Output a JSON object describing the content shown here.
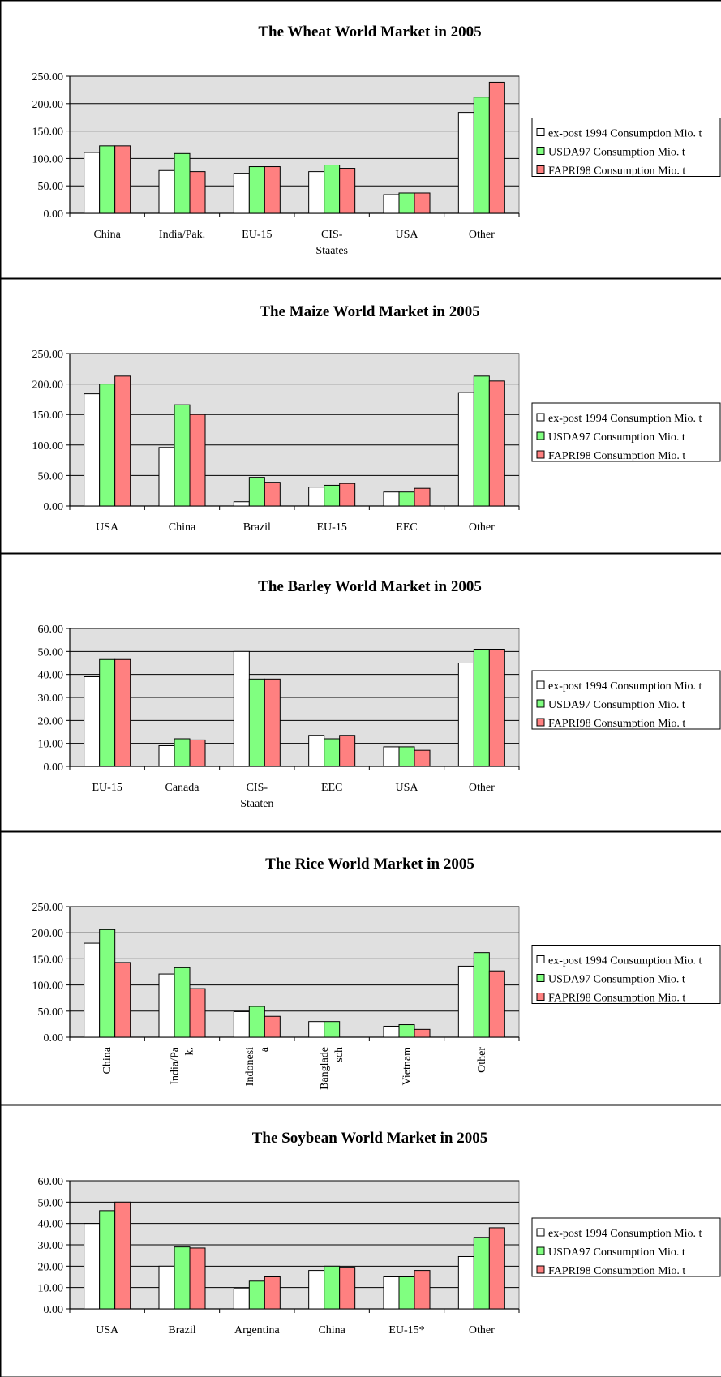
{
  "colors": {
    "plot_bg": "#e0e0e0",
    "series": [
      "#ffffff",
      "#80ff80",
      "#ff8080"
    ],
    "frame": "#000000"
  },
  "chart_data": [
    {
      "type": "bar",
      "title": "The Wheat World Market in 2005",
      "categories": [
        "China",
        "India/Pak.",
        "EU-15",
        "CIS-\nStaates",
        "USA",
        "Other"
      ],
      "ylim": [
        0,
        250
      ],
      "yticks": [
        "0.00",
        "50.00",
        "100.00",
        "150.00",
        "200.00",
        "250.00"
      ],
      "grid": true,
      "legend_position": "right",
      "label_rotation": 0,
      "series": [
        {
          "name": "ex-post 1994 Consumption Mio. t",
          "values": [
            111,
            78,
            73,
            76,
            34,
            184
          ]
        },
        {
          "name": "USDA97 Consumption Mio. t",
          "values": [
            123,
            109,
            85,
            88,
            37,
            212
          ]
        },
        {
          "name": "FAPRI98 Consumption Mio. t",
          "values": [
            123,
            76,
            85,
            82,
            37,
            239
          ]
        }
      ]
    },
    {
      "type": "bar",
      "title": "The Maize World Market in 2005",
      "categories": [
        "USA",
        "China",
        "Brazil",
        "EU-15",
        "EEC",
        "Other"
      ],
      "ylim": [
        0,
        250
      ],
      "yticks": [
        "0.00",
        "50.00",
        "100.00",
        "150.00",
        "200.00",
        "250.00"
      ],
      "grid": true,
      "legend_position": "right",
      "label_rotation": 0,
      "series": [
        {
          "name": "ex-post 1994 Consumption Mio. t",
          "values": [
            184,
            96,
            7,
            31,
            23,
            186
          ]
        },
        {
          "name": "USDA97 Consumption Mio. t",
          "values": [
            200,
            166,
            47,
            34,
            23,
            213
          ]
        },
        {
          "name": "FAPRI98 Consumption Mio. t",
          "values": [
            213,
            150,
            39,
            37,
            29,
            205
          ]
        }
      ]
    },
    {
      "type": "bar",
      "title": "The Barley World Market in 2005",
      "categories": [
        "EU-15",
        "Canada",
        "CIS-\nStaaten",
        "EEC",
        "USA",
        "Other"
      ],
      "ylim": [
        0,
        60
      ],
      "yticks": [
        "0.00",
        "10.00",
        "20.00",
        "30.00",
        "40.00",
        "50.00",
        "60.00"
      ],
      "grid": true,
      "legend_position": "right",
      "label_rotation": 0,
      "series": [
        {
          "name": "ex-post 1994 Consumption Mio. t",
          "values": [
            39,
            9,
            50,
            13.5,
            8.5,
            45
          ]
        },
        {
          "name": "USDA97 Consumption Mio. t",
          "values": [
            46.5,
            12,
            38,
            12,
            8.5,
            51
          ]
        },
        {
          "name": "FAPRI98 Consumption Mio. t",
          "values": [
            46.5,
            11.5,
            38,
            13.5,
            7,
            51
          ]
        }
      ]
    },
    {
      "type": "bar",
      "title": "The Rice World Market in 2005",
      "categories": [
        "China",
        "India/Pa\nk.",
        "Indonesi\na",
        "Banglade\nsch",
        "Vietnam",
        "Other"
      ],
      "ylim": [
        0,
        250
      ],
      "yticks": [
        "0.00",
        "50.00",
        "100.00",
        "150.00",
        "200.00",
        "250.00"
      ],
      "grid": true,
      "legend_position": "right",
      "label_rotation": -90,
      "series": [
        {
          "name": "ex-post 1994 Consumption Mio. t",
          "values": [
            180,
            121,
            49,
            30,
            21,
            136
          ]
        },
        {
          "name": "USDA97 Consumption Mio. t",
          "values": [
            206,
            133,
            59,
            30,
            24,
            162
          ]
        },
        {
          "name": "FAPRI98 Consumption Mio. t",
          "values": [
            143,
            93,
            40,
            0,
            15,
            127
          ]
        }
      ]
    },
    {
      "type": "bar",
      "title": "The Soybean World Market in 2005",
      "categories": [
        "USA",
        "Brazil",
        "Argentina",
        "China",
        "EU-15*",
        "Other"
      ],
      "ylim": [
        0,
        60
      ],
      "yticks": [
        "0.00",
        "10.00",
        "20.00",
        "30.00",
        "40.00",
        "50.00",
        "60.00"
      ],
      "grid": true,
      "legend_position": "right",
      "label_rotation": 0,
      "series": [
        {
          "name": "ex-post 1994 Consumption Mio. t",
          "values": [
            40,
            20,
            9.5,
            18,
            15,
            24.5
          ]
        },
        {
          "name": "USDA97 Consumption Mio. t",
          "values": [
            46,
            29,
            13,
            20,
            15,
            33.5
          ]
        },
        {
          "name": "FAPRI98 Consumption Mio. t",
          "values": [
            50,
            28.5,
            15,
            19.5,
            18,
            38
          ]
        }
      ]
    }
  ]
}
